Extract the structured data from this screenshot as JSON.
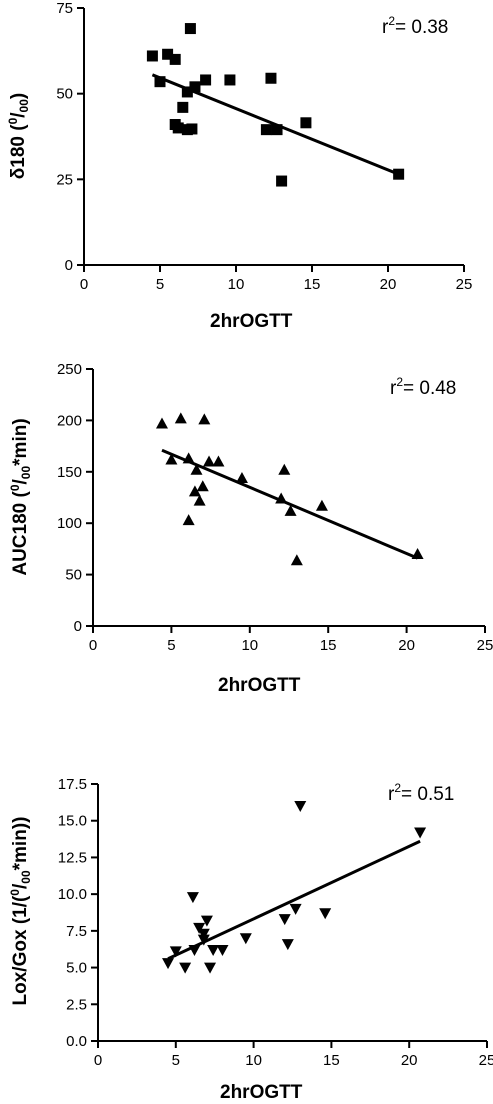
{
  "chart_data": [
    {
      "type": "scatter",
      "marker": "square",
      "xlabel": "2hrOGTT",
      "ylabel": {
        "prefix": "δ180 (",
        "sup": "0",
        "mid": "/",
        "sub": "00",
        "suffix": ")"
      },
      "annotation": {
        "base": "r",
        "sup": "2",
        "rest": "= 0.38"
      },
      "xlim": [
        0,
        25
      ],
      "ylim": [
        0,
        75
      ],
      "xticks": [
        0,
        5,
        10,
        15,
        20,
        25
      ],
      "yticks": [
        0,
        25,
        50,
        75
      ],
      "points": [
        [
          4.5,
          61
        ],
        [
          5.0,
          53.5
        ],
        [
          5.5,
          61.5
        ],
        [
          6.0,
          60
        ],
        [
          6.0,
          41
        ],
        [
          6.2,
          40
        ],
        [
          6.5,
          46
        ],
        [
          6.8,
          50.5
        ],
        [
          6.8,
          39.5
        ],
        [
          7.0,
          69
        ],
        [
          7.1,
          39.7
        ],
        [
          7.3,
          52
        ],
        [
          8.0,
          54
        ],
        [
          9.6,
          54
        ],
        [
          12.0,
          39.5
        ],
        [
          12.3,
          54.5
        ],
        [
          12.7,
          39.5
        ],
        [
          13.0,
          24.5
        ],
        [
          14.6,
          41.5
        ],
        [
          20.7,
          26.5
        ]
      ],
      "fit": {
        "x": [
          4.5,
          20.7
        ],
        "y": [
          55.5,
          26.5
        ]
      }
    },
    {
      "type": "scatter",
      "marker": "triangle-up",
      "xlabel": "2hrOGTT",
      "ylabel": {
        "prefix": "AUC180 (",
        "sup": "0",
        "mid": "/",
        "sub": "00",
        "suffix": "*min)"
      },
      "annotation": {
        "base": "r",
        "sup": "2",
        "rest": "= 0.48"
      },
      "xlim": [
        0,
        25
      ],
      "ylim": [
        0,
        250
      ],
      "xticks": [
        0,
        5,
        10,
        15,
        20,
        25
      ],
      "yticks": [
        0,
        50,
        100,
        150,
        200,
        250
      ],
      "points": [
        [
          4.4,
          197
        ],
        [
          5.0,
          162
        ],
        [
          5.6,
          202
        ],
        [
          6.1,
          163
        ],
        [
          6.1,
          103
        ],
        [
          6.5,
          131
        ],
        [
          6.6,
          152
        ],
        [
          6.8,
          122
        ],
        [
          7.0,
          136
        ],
        [
          7.1,
          201
        ],
        [
          7.4,
          160
        ],
        [
          8.0,
          160
        ],
        [
          9.5,
          144
        ],
        [
          12.0,
          124
        ],
        [
          12.2,
          152
        ],
        [
          12.6,
          112
        ],
        [
          13.0,
          64
        ],
        [
          14.6,
          117
        ],
        [
          20.7,
          70
        ]
      ],
      "fit": {
        "x": [
          4.4,
          20.7
        ],
        "y": [
          171,
          66
        ]
      }
    },
    {
      "type": "scatter",
      "marker": "triangle-down",
      "xlabel": "2hrOGTT",
      "ylabel": {
        "prefix": "Lox/Gox  (1/(",
        "sup": "0",
        "mid": "/",
        "sub": "00",
        "suffix": "*min))"
      },
      "annotation": {
        "base": "r",
        "sup": "2",
        "rest": "= 0.51"
      },
      "xlim": [
        0,
        25
      ],
      "ylim": [
        0,
        17.5
      ],
      "xticks": [
        0,
        5,
        10,
        15,
        20,
        25
      ],
      "yticks": [
        0.0,
        2.5,
        5.0,
        7.5,
        10.0,
        12.5,
        15.0,
        17.5
      ],
      "ytick_labels": [
        "0.0",
        "2.5",
        "5.0",
        "7.5",
        "10.0",
        "12.5",
        "15.0",
        "17.5"
      ],
      "points": [
        [
          4.5,
          5.3
        ],
        [
          5.0,
          6.1
        ],
        [
          5.6,
          5.0
        ],
        [
          6.1,
          9.8
        ],
        [
          6.2,
          6.2
        ],
        [
          6.5,
          7.7
        ],
        [
          6.8,
          7.3
        ],
        [
          6.8,
          6.9
        ],
        [
          7.0,
          8.2
        ],
        [
          7.2,
          5.0
        ],
        [
          7.4,
          6.2
        ],
        [
          8.0,
          6.2
        ],
        [
          9.5,
          7.0
        ],
        [
          12.0,
          8.3
        ],
        [
          12.2,
          6.6
        ],
        [
          12.7,
          9.0
        ],
        [
          13.0,
          16.0
        ],
        [
          14.6,
          8.7
        ],
        [
          20.7,
          14.2
        ]
      ],
      "fit": {
        "x": [
          4.5,
          20.7
        ],
        "y": [
          5.6,
          13.6
        ]
      }
    }
  ]
}
